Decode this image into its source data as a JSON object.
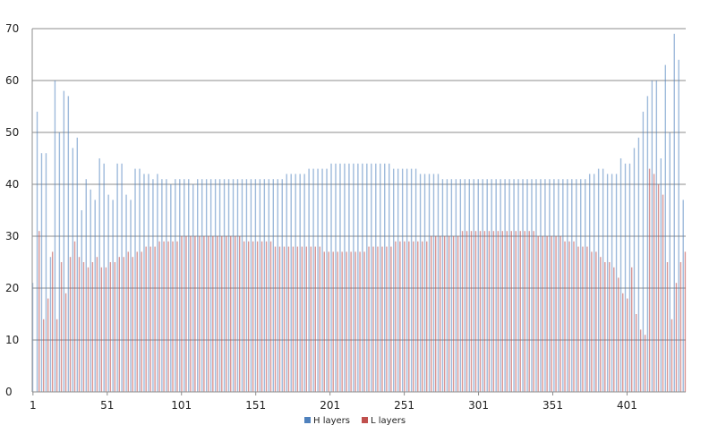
{
  "chart_data": {
    "type": "bar",
    "title": "",
    "xlabel": "",
    "ylabel": "",
    "ylim": [
      0,
      70
    ],
    "y_ticks": [
      "0",
      "10",
      "20",
      "30",
      "40",
      "50",
      "60",
      "70"
    ],
    "x_range": [
      1,
      440
    ],
    "x_ticks": [
      "1",
      "51",
      "101",
      "151",
      "201",
      "251",
      "301",
      "351",
      "401"
    ],
    "grid": true,
    "legend_position": "bottom",
    "colors": {
      "H": "#4f81bd",
      "L": "#c0504d",
      "grid": "#8c8c8c",
      "axis": "#8c8c8c"
    },
    "note_sampling": "one bar pair shown for every 3rd x index",
    "x": [
      1,
      4,
      7,
      10,
      13,
      16,
      19,
      22,
      25,
      28,
      31,
      34,
      37,
      40,
      43,
      46,
      49,
      52,
      55,
      58,
      61,
      64,
      67,
      70,
      73,
      76,
      79,
      82,
      85,
      88,
      91,
      94,
      97,
      100,
      103,
      106,
      109,
      112,
      115,
      118,
      121,
      124,
      127,
      130,
      133,
      136,
      139,
      142,
      145,
      148,
      151,
      154,
      157,
      160,
      163,
      166,
      169,
      172,
      175,
      178,
      181,
      184,
      187,
      190,
      193,
      196,
      199,
      202,
      205,
      208,
      211,
      214,
      217,
      220,
      223,
      226,
      229,
      232,
      235,
      238,
      241,
      244,
      247,
      250,
      253,
      256,
      259,
      262,
      265,
      268,
      271,
      274,
      277,
      280,
      283,
      286,
      289,
      292,
      295,
      298,
      301,
      304,
      307,
      310,
      313,
      316,
      319,
      322,
      325,
      328,
      331,
      334,
      337,
      340,
      343,
      346,
      349,
      352,
      355,
      358,
      361,
      364,
      367,
      370,
      373,
      376,
      379,
      382,
      385,
      388,
      391,
      394,
      397,
      400,
      403,
      406,
      409,
      412,
      415,
      418,
      421,
      424,
      427,
      430,
      433,
      436,
      439
    ],
    "series": [
      {
        "name": "H layers",
        "values": [
          21,
          54,
          46,
          46,
          26,
          60,
          50,
          58,
          57,
          47,
          49,
          35,
          41,
          39,
          37,
          45,
          44,
          38,
          37,
          44,
          44,
          38,
          37,
          43,
          43,
          42,
          42,
          41,
          42,
          41,
          41,
          40,
          41,
          41,
          41,
          41,
          40,
          41,
          41,
          41,
          41,
          41,
          41,
          41,
          41,
          41,
          41,
          41,
          41,
          41,
          41,
          41,
          41,
          41,
          41,
          41,
          41,
          42,
          42,
          42,
          42,
          42,
          43,
          43,
          43,
          43,
          43,
          44,
          44,
          44,
          44,
          44,
          44,
          44,
          44,
          44,
          44,
          44,
          44,
          44,
          44,
          43,
          43,
          43,
          43,
          43,
          43,
          42,
          42,
          42,
          42,
          42,
          41,
          41,
          41,
          41,
          41,
          41,
          41,
          41,
          41,
          41,
          41,
          41,
          41,
          41,
          41,
          41,
          41,
          41,
          41,
          41,
          41,
          41,
          41,
          41,
          41,
          41,
          41,
          41,
          41,
          41,
          41,
          41,
          41,
          42,
          42,
          43,
          43,
          42,
          42,
          42,
          45,
          44,
          44,
          47,
          49,
          54,
          57,
          60,
          60,
          45,
          63,
          50,
          69,
          64,
          37
        ]
      },
      {
        "name": "L layers",
        "values": [
          0,
          31,
          14,
          18,
          27,
          14,
          25,
          19,
          26,
          29,
          26,
          25,
          24,
          25,
          26,
          24,
          24,
          25,
          25,
          26,
          26,
          27,
          26,
          27,
          27,
          28,
          28,
          28,
          29,
          29,
          29,
          29,
          29,
          30,
          30,
          30,
          30,
          30,
          30,
          30,
          30,
          30,
          30,
          30,
          30,
          30,
          30,
          29,
          29,
          29,
          29,
          29,
          29,
          29,
          28,
          28,
          28,
          28,
          28,
          28,
          28,
          28,
          28,
          28,
          28,
          27,
          27,
          27,
          27,
          27,
          27,
          27,
          27,
          27,
          27,
          28,
          28,
          28,
          28,
          28,
          28,
          29,
          29,
          29,
          29,
          29,
          29,
          29,
          29,
          30,
          30,
          30,
          30,
          30,
          30,
          30,
          31,
          31,
          31,
          31,
          31,
          31,
          31,
          31,
          31,
          31,
          31,
          31,
          31,
          31,
          31,
          31,
          31,
          30,
          30,
          30,
          30,
          30,
          30,
          29,
          29,
          29,
          28,
          28,
          28,
          27,
          27,
          26,
          25,
          25,
          24,
          22,
          19,
          18,
          24,
          15,
          12,
          11,
          43,
          42,
          40,
          38,
          25,
          14,
          21,
          25,
          27
        ]
      }
    ]
  },
  "legend": {
    "h_label": "H layers",
    "l_label": "L layers"
  }
}
